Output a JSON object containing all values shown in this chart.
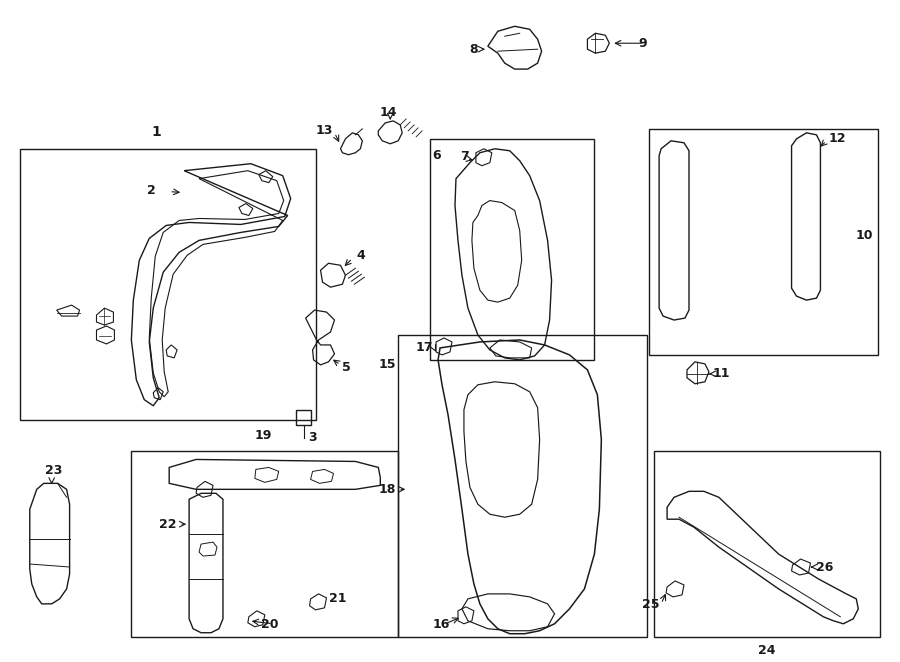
{
  "bg_color": "#ffffff",
  "line_color": "#1a1a1a",
  "figsize": [
    9.0,
    6.62
  ],
  "dpi": 100,
  "lw": 1.0
}
